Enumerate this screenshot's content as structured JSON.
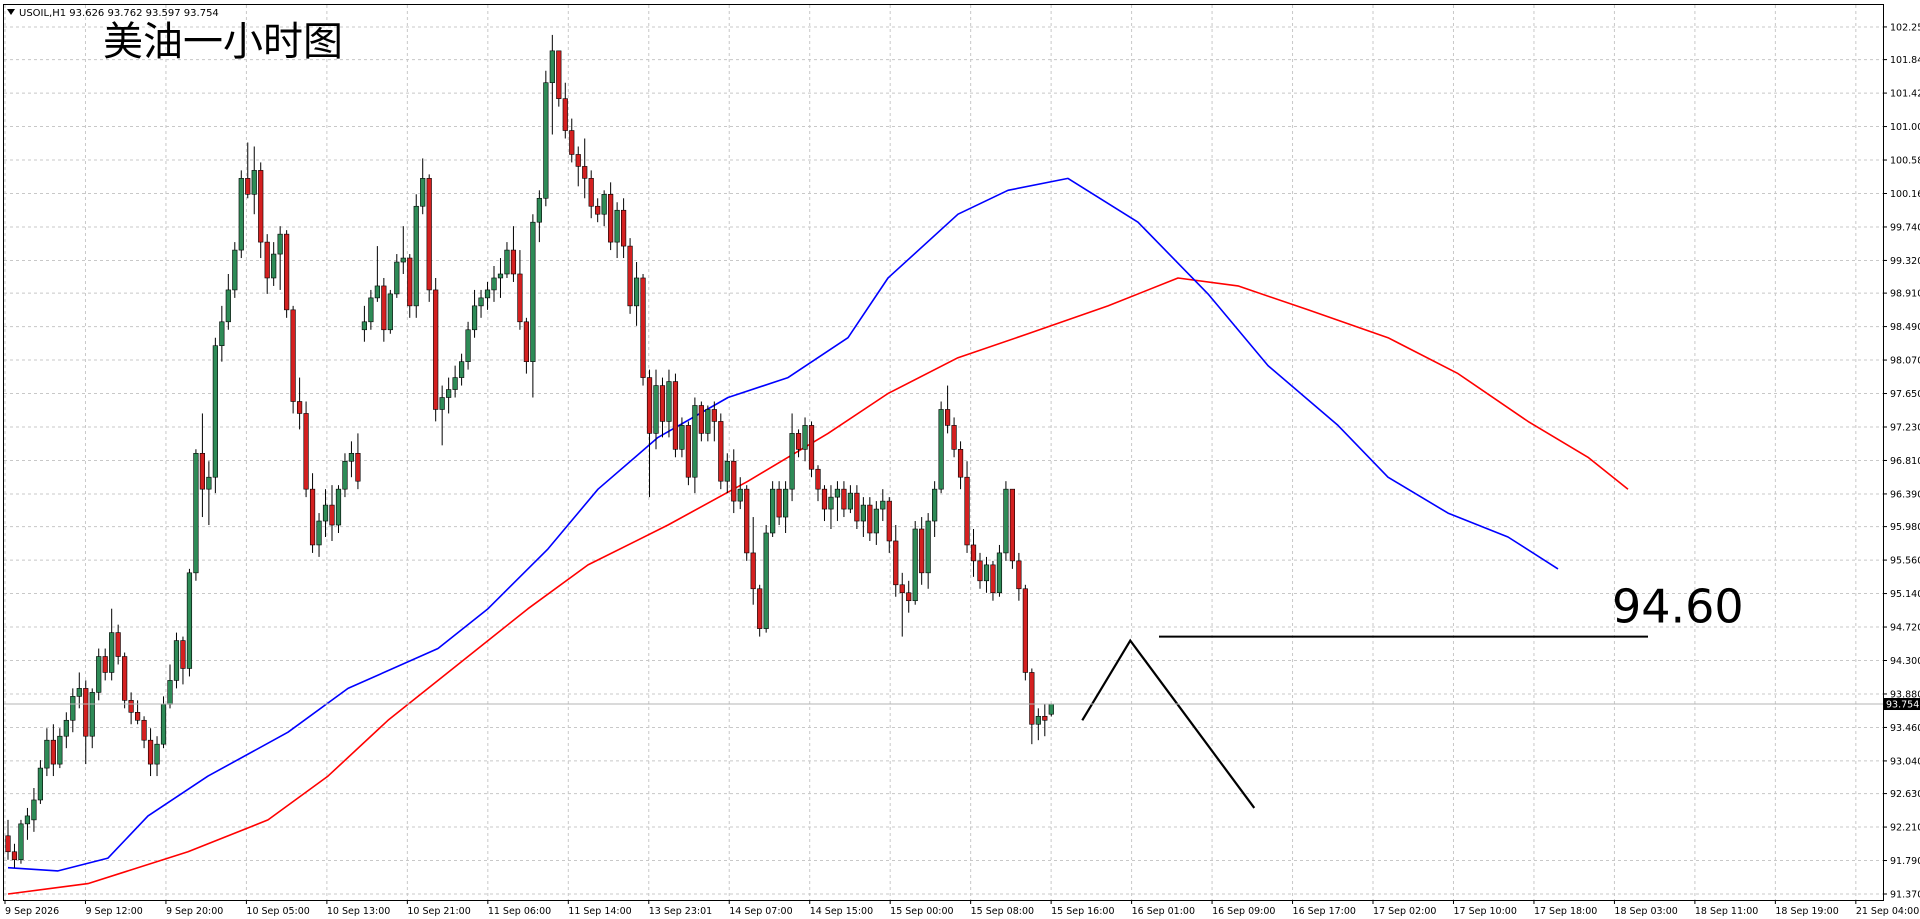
{
  "chart_data": {
    "type": "candlestick",
    "symbol_info": "USOIL,H1  93.626 93.762 93.597 93.754",
    "title": "美油一小时图",
    "ylim": [
      91.37,
      102.45
    ],
    "y_ticks": [
      "102.250",
      "101.840",
      "101.420",
      "101.000",
      "100.580",
      "100.160",
      "99.740",
      "99.320",
      "98.910",
      "98.490",
      "98.070",
      "97.650",
      "97.230",
      "96.810",
      "96.390",
      "95.980",
      "95.560",
      "95.140",
      "94.720",
      "94.300",
      "93.880",
      "93.460",
      "93.040",
      "92.630",
      "92.210",
      "91.790",
      "91.370"
    ],
    "x_ticks": [
      "9 Sep 2026",
      "9 Sep 12:00",
      "9 Sep 20:00",
      "10 Sep 05:00",
      "10 Sep 13:00",
      "10 Sep 21:00",
      "11 Sep 06:00",
      "11 Sep 14:00",
      "13 Sep 23:01",
      "14 Sep 07:00",
      "14 Sep 15:00",
      "15 Sep 00:00",
      "15 Sep 08:00",
      "15 Sep 16:00",
      "16 Sep 01:00",
      "16 Sep 09:00",
      "16 Sep 17:00",
      "17 Sep 02:00",
      "17 Sep 10:00",
      "17 Sep 18:00",
      "18 Sep 03:00",
      "18 Sep 11:00",
      "18 Sep 19:00",
      "21 Sep 04:00"
    ],
    "current_price": "93.754",
    "annotation_level": "94.60",
    "colors": {
      "up": "#2e8b57",
      "down": "#d42020",
      "ma_fast": "#0000ff",
      "ma_slow": "#ff0000",
      "grid": "#c8c8c8",
      "annotation": "#000000"
    },
    "grid": true,
    "candles_ohlc": [
      [
        92.1,
        92.3,
        91.8,
        91.9
      ],
      [
        91.9,
        92.0,
        91.7,
        91.8
      ],
      [
        91.8,
        92.3,
        91.75,
        92.25
      ],
      [
        92.25,
        92.45,
        92.05,
        92.35
      ],
      [
        92.3,
        92.7,
        92.15,
        92.55
      ],
      [
        92.55,
        93.05,
        92.5,
        92.95
      ],
      [
        92.95,
        93.45,
        92.85,
        93.3
      ],
      [
        93.3,
        93.5,
        92.85,
        93.0
      ],
      [
        93.0,
        93.45,
        92.95,
        93.35
      ],
      [
        93.35,
        93.65,
        93.2,
        93.55
      ],
      [
        93.55,
        93.95,
        93.4,
        93.85
      ],
      [
        93.85,
        94.15,
        93.7,
        93.95
      ],
      [
        93.95,
        94.05,
        93.0,
        93.35
      ],
      [
        93.35,
        93.95,
        93.2,
        93.9
      ],
      [
        93.9,
        94.45,
        93.8,
        94.35
      ],
      [
        94.35,
        94.45,
        94.05,
        94.15
      ],
      [
        94.15,
        94.95,
        94.05,
        94.65
      ],
      [
        94.65,
        94.75,
        94.25,
        94.35
      ],
      [
        94.35,
        94.4,
        93.7,
        93.8
      ],
      [
        93.8,
        93.9,
        93.5,
        93.65
      ],
      [
        93.65,
        93.8,
        93.5,
        93.55
      ],
      [
        93.55,
        93.6,
        93.2,
        93.3
      ],
      [
        93.3,
        93.45,
        92.85,
        93.0
      ],
      [
        93.0,
        93.35,
        92.85,
        93.25
      ],
      [
        93.25,
        93.85,
        93.2,
        93.75
      ],
      [
        93.75,
        94.25,
        93.7,
        94.05
      ],
      [
        94.05,
        94.65,
        93.95,
        94.55
      ],
      [
        94.55,
        94.6,
        94.0,
        94.2
      ],
      [
        94.2,
        95.45,
        94.1,
        95.4
      ],
      [
        95.4,
        96.95,
        95.3,
        96.9
      ],
      [
        96.9,
        97.4,
        96.1,
        96.45
      ],
      [
        96.45,
        96.8,
        96.0,
        96.6
      ],
      [
        96.6,
        98.35,
        96.4,
        98.25
      ],
      [
        98.25,
        98.75,
        98.05,
        98.55
      ],
      [
        98.55,
        99.15,
        98.45,
        98.95
      ],
      [
        98.95,
        99.55,
        98.85,
        99.45
      ],
      [
        99.45,
        100.45,
        99.35,
        100.35
      ],
      [
        100.35,
        100.8,
        100.1,
        100.15
      ],
      [
        100.15,
        100.75,
        99.9,
        100.45
      ],
      [
        100.45,
        100.55,
        99.35,
        99.55
      ],
      [
        99.55,
        99.65,
        98.9,
        99.1
      ],
      [
        99.1,
        99.55,
        99.0,
        99.4
      ],
      [
        99.4,
        99.75,
        98.95,
        99.65
      ],
      [
        99.65,
        99.7,
        98.6,
        98.7
      ],
      [
        98.7,
        98.75,
        97.4,
        97.55
      ],
      [
        97.55,
        97.85,
        97.2,
        97.4
      ],
      [
        97.4,
        97.55,
        96.35,
        96.45
      ],
      [
        96.45,
        96.65,
        95.65,
        95.75
      ],
      [
        95.75,
        96.15,
        95.6,
        96.05
      ],
      [
        96.05,
        96.45,
        95.85,
        96.25
      ],
      [
        96.25,
        96.5,
        95.8,
        96.0
      ],
      [
        96.0,
        96.5,
        95.9,
        96.45
      ],
      [
        96.45,
        96.9,
        96.35,
        96.8
      ],
      [
        96.8,
        97.05,
        96.6,
        96.9
      ],
      [
        96.9,
        97.15,
        96.45,
        96.55
      ],
      [
        98.45,
        98.75,
        98.3,
        98.55
      ],
      [
        98.55,
        98.95,
        98.45,
        98.85
      ],
      [
        98.85,
        99.5,
        98.8,
        99.0
      ],
      [
        99.0,
        99.1,
        98.3,
        98.45
      ],
      [
        98.45,
        98.95,
        98.4,
        98.9
      ],
      [
        98.9,
        99.4,
        98.85,
        99.3
      ],
      [
        99.3,
        99.75,
        99.15,
        99.35
      ],
      [
        99.35,
        99.4,
        98.6,
        98.75
      ],
      [
        98.75,
        100.15,
        98.6,
        100.0
      ],
      [
        100.0,
        100.6,
        99.9,
        100.35
      ],
      [
        100.35,
        100.4,
        98.8,
        98.95
      ],
      [
        98.95,
        99.1,
        97.3,
        97.45
      ],
      [
        97.45,
        97.75,
        97.0,
        97.6
      ],
      [
        97.6,
        97.85,
        97.4,
        97.7
      ],
      [
        97.7,
        98.0,
        97.6,
        97.85
      ],
      [
        97.85,
        98.15,
        97.75,
        98.05
      ],
      [
        98.05,
        98.55,
        97.95,
        98.45
      ],
      [
        98.45,
        98.95,
        98.35,
        98.75
      ],
      [
        98.75,
        98.95,
        98.6,
        98.85
      ],
      [
        98.85,
        99.05,
        98.7,
        98.95
      ],
      [
        98.95,
        99.25,
        98.8,
        99.1
      ],
      [
        99.1,
        99.35,
        98.85,
        99.15
      ],
      [
        99.15,
        99.55,
        99.1,
        99.45
      ],
      [
        99.45,
        99.75,
        99.05,
        99.15
      ],
      [
        99.15,
        99.45,
        98.45,
        98.55
      ],
      [
        98.55,
        98.6,
        97.9,
        98.05
      ],
      [
        98.05,
        99.9,
        97.6,
        99.8
      ],
      [
        99.8,
        100.2,
        99.55,
        100.1
      ],
      [
        100.1,
        101.7,
        100.0,
        101.55
      ],
      [
        101.55,
        102.15,
        100.9,
        101.95
      ],
      [
        101.95,
        101.95,
        101.25,
        101.35
      ],
      [
        101.35,
        101.55,
        100.85,
        100.95
      ],
      [
        100.95,
        101.1,
        100.55,
        100.65
      ],
      [
        100.65,
        100.75,
        100.25,
        100.5
      ],
      [
        100.5,
        100.85,
        100.1,
        100.35
      ],
      [
        100.35,
        100.45,
        99.85,
        100.0
      ],
      [
        100.0,
        100.1,
        99.8,
        99.9
      ],
      [
        99.9,
        100.2,
        99.75,
        100.15
      ],
      [
        100.15,
        100.3,
        99.45,
        99.55
      ],
      [
        99.55,
        100.05,
        99.35,
        99.95
      ],
      [
        99.95,
        100.1,
        99.35,
        99.5
      ],
      [
        99.5,
        99.6,
        98.65,
        98.75
      ],
      [
        98.75,
        99.3,
        98.5,
        99.1
      ],
      [
        99.1,
        99.15,
        97.75,
        97.85
      ],
      [
        97.85,
        97.95,
        96.35,
        97.15
      ],
      [
        97.15,
        97.95,
        96.95,
        97.75
      ],
      [
        97.75,
        97.85,
        97.1,
        97.3
      ],
      [
        97.3,
        97.95,
        97.1,
        97.8
      ],
      [
        97.8,
        97.9,
        96.85,
        96.95
      ],
      [
        96.95,
        97.35,
        96.85,
        97.25
      ],
      [
        97.25,
        97.3,
        96.5,
        96.6
      ],
      [
        96.6,
        97.6,
        96.4,
        97.5
      ],
      [
        97.5,
        97.55,
        97.05,
        97.15
      ],
      [
        97.15,
        97.5,
        97.05,
        97.45
      ],
      [
        97.45,
        97.55,
        97.05,
        97.3
      ],
      [
        97.3,
        97.4,
        96.45,
        96.55
      ],
      [
        96.55,
        96.9,
        96.4,
        96.8
      ],
      [
        96.8,
        96.95,
        96.15,
        96.3
      ],
      [
        96.3,
        96.6,
        96.2,
        96.45
      ],
      [
        96.45,
        96.5,
        95.55,
        95.65
      ],
      [
        95.65,
        96.1,
        95.0,
        95.2
      ],
      [
        95.2,
        95.25,
        94.6,
        94.7
      ],
      [
        94.7,
        96.0,
        94.65,
        95.9
      ],
      [
        95.9,
        96.55,
        95.85,
        96.45
      ],
      [
        96.45,
        96.55,
        96.0,
        96.1
      ],
      [
        96.1,
        96.55,
        95.9,
        96.45
      ],
      [
        96.45,
        97.4,
        96.3,
        97.15
      ],
      [
        97.15,
        97.2,
        96.85,
        96.95
      ],
      [
        96.95,
        97.35,
        96.8,
        97.25
      ],
      [
        97.25,
        97.3,
        96.6,
        96.7
      ],
      [
        96.7,
        96.75,
        96.3,
        96.45
      ],
      [
        96.45,
        96.5,
        96.05,
        96.2
      ],
      [
        96.2,
        96.5,
        95.95,
        96.35
      ],
      [
        96.35,
        96.55,
        96.05,
        96.45
      ],
      [
        96.45,
        96.55,
        96.1,
        96.2
      ],
      [
        96.2,
        96.5,
        96.15,
        96.4
      ],
      [
        96.4,
        96.5,
        95.95,
        96.05
      ],
      [
        96.05,
        96.35,
        95.85,
        96.25
      ],
      [
        96.25,
        96.35,
        95.8,
        95.9
      ],
      [
        95.9,
        96.3,
        95.75,
        96.2
      ],
      [
        96.2,
        96.45,
        96.05,
        96.3
      ],
      [
        96.3,
        96.35,
        95.65,
        95.8
      ],
      [
        95.8,
        96.0,
        95.1,
        95.25
      ],
      [
        95.25,
        95.4,
        94.6,
        95.15
      ],
      [
        95.15,
        95.3,
        94.9,
        95.05
      ],
      [
        95.05,
        96.05,
        95.0,
        95.95
      ],
      [
        95.95,
        96.1,
        95.25,
        95.4
      ],
      [
        95.4,
        96.15,
        95.2,
        96.05
      ],
      [
        96.05,
        96.55,
        95.85,
        96.45
      ],
      [
        96.45,
        97.55,
        96.4,
        97.45
      ],
      [
        97.45,
        97.75,
        97.15,
        97.25
      ],
      [
        97.25,
        97.35,
        96.85,
        96.95
      ],
      [
        96.95,
        97.05,
        96.45,
        96.6
      ],
      [
        96.6,
        96.8,
        95.65,
        95.75
      ],
      [
        95.75,
        95.95,
        95.35,
        95.55
      ],
      [
        95.55,
        95.65,
        95.2,
        95.3
      ],
      [
        95.3,
        95.6,
        95.15,
        95.5
      ],
      [
        95.5,
        95.55,
        95.05,
        95.15
      ],
      [
        95.15,
        95.75,
        95.1,
        95.65
      ],
      [
        95.65,
        96.55,
        95.55,
        96.45
      ],
      [
        96.45,
        96.45,
        95.45,
        95.55
      ],
      [
        95.55,
        95.65,
        95.05,
        95.2
      ],
      [
        95.2,
        95.25,
        94.05,
        94.15
      ],
      [
        94.15,
        94.2,
        93.25,
        93.5
      ],
      [
        93.5,
        93.7,
        93.3,
        93.6
      ],
      [
        93.6,
        93.75,
        93.35,
        93.55
      ],
      [
        93.626,
        93.762,
        93.597,
        93.754
      ]
    ],
    "ma_fast": [
      [
        0,
        91.7
      ],
      [
        0.05,
        91.66
      ],
      [
        0.1,
        91.82
      ],
      [
        0.14,
        92.35
      ],
      [
        0.2,
        92.85
      ],
      [
        0.28,
        93.4
      ],
      [
        0.34,
        93.95
      ],
      [
        0.43,
        94.45
      ],
      [
        0.48,
        94.95
      ],
      [
        0.54,
        95.7
      ],
      [
        0.59,
        96.45
      ],
      [
        0.65,
        97.1
      ],
      [
        0.72,
        97.6
      ],
      [
        0.78,
        97.85
      ],
      [
        0.84,
        98.35
      ],
      [
        0.88,
        99.1
      ],
      [
        0.95,
        99.9
      ],
      [
        1.0,
        100.2
      ],
      [
        1.06,
        100.35
      ],
      [
        1.13,
        99.8
      ],
      [
        1.2,
        98.9
      ],
      [
        1.26,
        98.0
      ],
      [
        1.33,
        97.25
      ],
      [
        1.38,
        96.6
      ],
      [
        1.44,
        96.15
      ],
      [
        1.5,
        95.85
      ],
      [
        1.55,
        95.45
      ]
    ],
    "ma_slow": [
      [
        0,
        91.37
      ],
      [
        0.08,
        91.5
      ],
      [
        0.18,
        91.9
      ],
      [
        0.26,
        92.3
      ],
      [
        0.32,
        92.85
      ],
      [
        0.38,
        93.55
      ],
      [
        0.45,
        94.25
      ],
      [
        0.52,
        94.95
      ],
      [
        0.58,
        95.5
      ],
      [
        0.66,
        96.0
      ],
      [
        0.74,
        96.55
      ],
      [
        0.82,
        97.15
      ],
      [
        0.88,
        97.65
      ],
      [
        0.95,
        98.1
      ],
      [
        1.02,
        98.4
      ],
      [
        1.1,
        98.75
      ],
      [
        1.17,
        99.1
      ],
      [
        1.23,
        99.0
      ],
      [
        1.3,
        98.7
      ],
      [
        1.38,
        98.35
      ],
      [
        1.45,
        97.9
      ],
      [
        1.52,
        97.3
      ],
      [
        1.58,
        96.85
      ],
      [
        1.62,
        96.45
      ]
    ]
  }
}
